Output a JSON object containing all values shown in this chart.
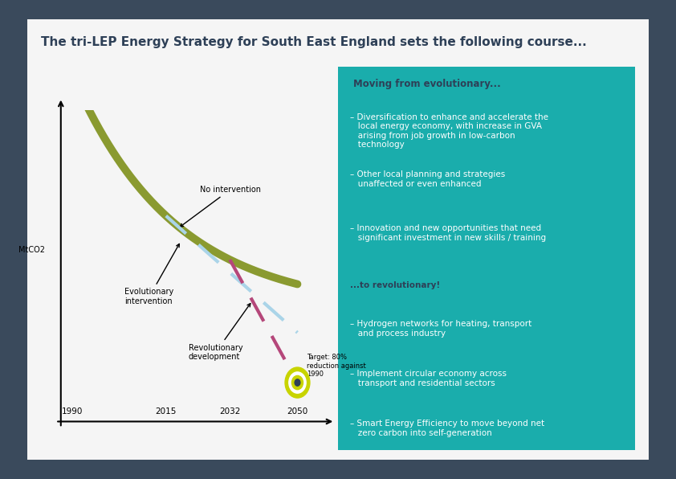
{
  "title": "The tri-LEP Energy Strategy for South East England sets the following course...",
  "title_color": "#2E4057",
  "title_fontsize": 11,
  "bg_outer": "#3a4a5c",
  "bg_inner": "#f5f5f5",
  "teal_box_color": "#1aadac",
  "panel_heading": "Moving from evolutionary...",
  "panel_heading_color": "#2E4057",
  "panel_heading_fontsize": 8.5,
  "bullet_color": "#ffffff",
  "bullet_fontsize": 7.5,
  "bullets": [
    "– Diversification to enhance and accelerate the\n   local energy economy, with increase in GVA\n   arising from job growth in low-carbon\n   technology",
    "– Other local planning and strategies\n   unaffected or even enhanced",
    "– Innovation and new opportunities that need\n   significant investment in new skills / training",
    "...to revolutionary!",
    "– Hydrogen networks for heating, transport\n   and process industry",
    "– Implement circular economy across\n   transport and residential sectors",
    "– Smart Energy Efficiency to move beyond net\n   zero carbon into self-generation"
  ],
  "bullet_special_index": 3,
  "bullet_special_color": "#2E4057",
  "mtco2_label": "MtCO2",
  "no_intervention_label": "No intervention",
  "evolutionary_label": "Evolutionary\nintervention",
  "revolutionary_label": "Revolutionary\ndevelopment",
  "target_label": "Target: 80%\nreduction against\n1990",
  "olive_color": "#8a9a30",
  "light_blue_color": "#aad4e8",
  "pink_color": "#b5477a",
  "target_outer": "#c8d400",
  "target_inner": "#2E4057"
}
